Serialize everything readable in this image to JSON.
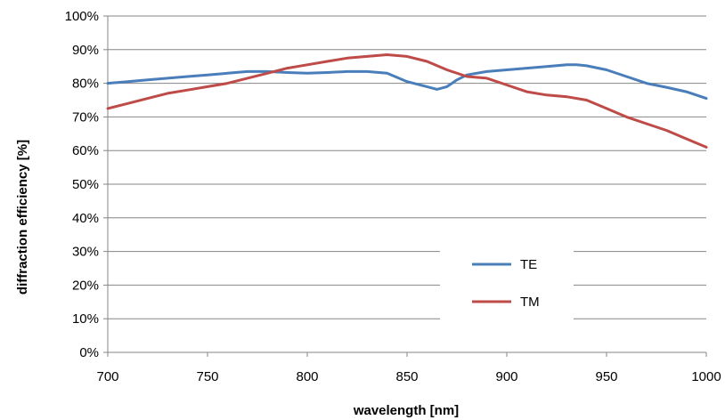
{
  "chart_data": {
    "type": "line",
    "title": "",
    "xlabel": "wavelength [nm]",
    "ylabel": "diffraction efficiency [%]",
    "xlim": [
      700,
      1000
    ],
    "ylim": [
      0,
      100
    ],
    "x_ticks": [
      700,
      750,
      800,
      850,
      900,
      950,
      1000
    ],
    "x_tick_labels": [
      "700",
      "750",
      "800",
      "850",
      "900",
      "950",
      "1000"
    ],
    "y_ticks": [
      0,
      10,
      20,
      30,
      40,
      50,
      60,
      70,
      80,
      90,
      100
    ],
    "y_tick_labels": [
      "0%",
      "10%",
      "20%",
      "30%",
      "40%",
      "50%",
      "60%",
      "70%",
      "80%",
      "90%",
      "100%"
    ],
    "grid": "horizontal",
    "legend_position": "bottom-right",
    "series": [
      {
        "name": "TE",
        "color": "#4a7ebb",
        "x": [
          700,
          710,
          720,
          730,
          740,
          750,
          760,
          770,
          780,
          790,
          800,
          810,
          820,
          830,
          840,
          850,
          860,
          865,
          870,
          875,
          880,
          890,
          900,
          910,
          920,
          930,
          935,
          940,
          950,
          960,
          970,
          980,
          990,
          1000
        ],
        "y": [
          80,
          80.5,
          81,
          81.5,
          82,
          82.5,
          83,
          83.5,
          83.5,
          83.2,
          83,
          83.2,
          83.5,
          83.5,
          83,
          80.5,
          79,
          78.2,
          79,
          81,
          82.5,
          83.5,
          84,
          84.5,
          85,
          85.5,
          85.5,
          85.2,
          84,
          82,
          80,
          78.8,
          77.5,
          75.5
        ]
      },
      {
        "name": "TM",
        "color": "#be4b48",
        "x": [
          700,
          710,
          720,
          730,
          740,
          750,
          760,
          770,
          780,
          790,
          800,
          810,
          820,
          830,
          840,
          850,
          860,
          870,
          880,
          890,
          900,
          910,
          920,
          930,
          940,
          950,
          960,
          970,
          980,
          990,
          1000
        ],
        "y": [
          72.5,
          74,
          75.5,
          77,
          78,
          79,
          80,
          81.5,
          83,
          84.5,
          85.5,
          86.5,
          87.5,
          88,
          88.5,
          88,
          86.5,
          84,
          82,
          81.5,
          79.5,
          77.5,
          76.5,
          76,
          75,
          72.5,
          70,
          68,
          66,
          63.5,
          61
        ]
      }
    ]
  }
}
